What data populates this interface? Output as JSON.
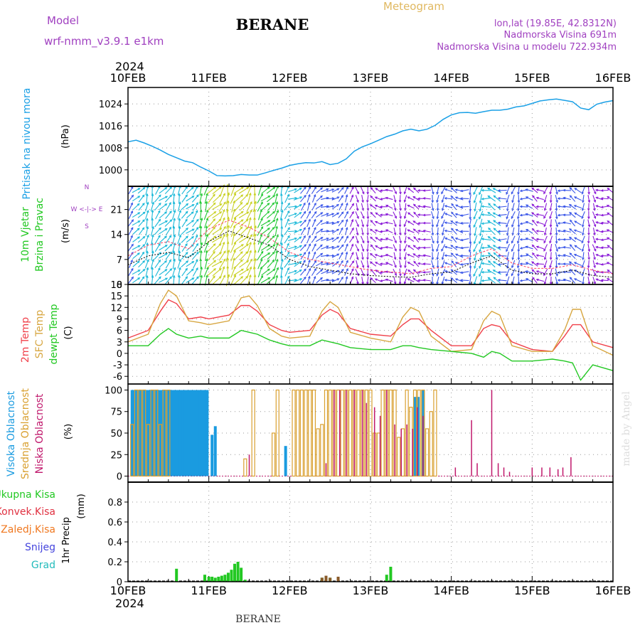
{
  "header": {
    "model_label": "Model",
    "model_name": "wrf-nmm_v3.9.1  e1km",
    "station": "BERANE",
    "product": "Meteogram",
    "lonlat": "lon,lat (19.85E, 42.8312N)",
    "elevation": "Nadmorska Visina 691m",
    "model_elevation": "Nadmorska Visina u modelu 722.934m",
    "year": "2024",
    "footer_station": "BERANE",
    "credit": "made by Angel"
  },
  "colors": {
    "pressure": "#1aa0e6",
    "temp2m": "#f0404a",
    "sfc_temp": "#d7a640",
    "dewpt": "#22c822",
    "high_cloud": "#1a9be0",
    "mid_cloud": "#d9a030",
    "low_cloud": "#c0186c",
    "precip_total": "#22c822",
    "precip_conv": "#e03040",
    "precip_frozen": "#f07820",
    "snow": "#4444dd",
    "hail": "#22bbbb",
    "model_text": "#a040c0"
  },
  "chart_data": [
    {
      "id": "pressure",
      "type": "line",
      "title": "Pritisak na nivou mora",
      "ylabel": "(hPa)",
      "xlabel": "",
      "x_ticks": [
        "10FEB",
        "11FEB",
        "12FEB",
        "13FEB",
        "14FEB",
        "15FEB",
        "16FEB"
      ],
      "ylim": [
        994,
        1030
      ],
      "y_ticks": [
        1000,
        1008,
        1016,
        1024
      ],
      "grid": true,
      "series": [
        {
          "x": [
            0,
            0.1,
            0.2,
            0.3,
            0.4,
            0.5,
            0.6,
            0.7,
            0.8,
            0.9,
            1.0,
            1.1,
            1.2,
            1.3,
            1.4,
            1.5,
            1.6,
            1.7,
            1.8,
            1.9,
            2.0,
            2.1,
            2.2,
            2.3,
            2.4,
            2.5,
            2.6,
            2.7,
            2.8,
            2.9,
            3.0,
            3.1,
            3.2,
            3.3,
            3.4,
            3.5,
            3.6,
            3.7,
            3.8,
            3.9,
            4.0,
            4.1,
            4.2,
            4.3,
            4.4,
            4.5,
            4.6,
            4.7,
            4.8,
            4.9,
            5.0,
            5.1,
            5.2,
            5.3,
            5.4,
            5.5,
            5.6,
            5.7,
            5.8,
            5.9,
            6.0
          ],
          "values": [
            1010.2,
            1010.8,
            1009.8,
            1008.6,
            1007.2,
            1005.6,
            1004.4,
            1003.2,
            1002.6,
            1001.0,
            999.6,
            997.9,
            997.8,
            997.9,
            998.3,
            998.1,
            998.1,
            998.9,
            999.8,
            1000.6,
            1001.6,
            1002.2,
            1002.6,
            1002.5,
            1003.0,
            1001.9,
            1002.4,
            1004.0,
            1006.8,
            1008.4,
            1009.5,
            1010.8,
            1012.1,
            1013.0,
            1014.2,
            1014.8,
            1014.2,
            1014.8,
            1016.2,
            1018.4,
            1020.0,
            1020.8,
            1020.9,
            1020.6,
            1021.2,
            1021.7,
            1021.7,
            1022.1,
            1022.9,
            1023.3,
            1024.2,
            1025.1,
            1025.5,
            1025.8,
            1025.3,
            1024.8,
            1022.5,
            1021.9,
            1023.9,
            1024.7,
            1025.2
          ]
        }
      ]
    },
    {
      "id": "wind",
      "type": "line",
      "title": "10m Vjetar",
      "subtitle": "Brzina i Pravac",
      "ylabel": "(m/s)",
      "compass": "W <-|-> E",
      "compass_n": "N",
      "compass_s": "S",
      "x_ticks": [
        "10FEB",
        "11FEB",
        "12FEB",
        "13FEB",
        "14FEB",
        "15FEB",
        "16FEB"
      ],
      "ylim": [
        0,
        27.5
      ],
      "y_ticks": [
        0,
        7,
        14,
        21
      ],
      "grid": true,
      "series": [
        {
          "name": "speed",
          "x": [
            0,
            0.25,
            0.5,
            0.75,
            1.0,
            1.25,
            1.5,
            1.75,
            2.0,
            2.25,
            2.5,
            2.75,
            3.0,
            3.25,
            3.5,
            3.75,
            4.0,
            4.25,
            4.5,
            4.75,
            5.0,
            5.25,
            5.5,
            5.75,
            6.0
          ],
          "values": [
            5.5,
            8.0,
            9.0,
            7.5,
            12.0,
            15.0,
            13.0,
            11.0,
            7.0,
            5.0,
            4.0,
            3.0,
            2.5,
            2.2,
            2.0,
            3.0,
            3.5,
            6.0,
            8.0,
            4.0,
            3.0,
            3.0,
            4.0,
            2.5,
            2.0
          ]
        },
        {
          "name": "gust",
          "x": [
            0,
            0.25,
            0.5,
            0.75,
            1.0,
            1.25,
            1.5,
            1.75,
            2.0,
            2.25,
            2.5,
            2.75,
            3.0,
            3.25,
            3.5,
            3.75,
            4.0,
            4.25,
            4.5,
            4.75,
            5.0,
            5.25,
            5.5,
            5.75,
            6.0
          ],
          "values": [
            8.0,
            11.0,
            12.0,
            10.0,
            15.5,
            18.0,
            16.0,
            13.0,
            9.0,
            7.0,
            6.0,
            5.0,
            4.0,
            3.5,
            3.0,
            4.5,
            5.0,
            8.0,
            10.0,
            6.0,
            4.5,
            4.5,
            5.5,
            4.0,
            3.0
          ]
        }
      ]
    },
    {
      "id": "temperature",
      "type": "line",
      "title": "2m Temp",
      "title2": "SFC Temp",
      "title3": "dewpt Temp",
      "ylabel": "(C)",
      "x_ticks": [
        "10FEB",
        "11FEB",
        "12FEB",
        "13FEB",
        "14FEB",
        "15FEB",
        "16FEB"
      ],
      "ylim": [
        -8,
        18
      ],
      "y_ticks": [
        -6,
        -3,
        0,
        3,
        6,
        9,
        12,
        15,
        18
      ],
      "grid": true,
      "series": [
        {
          "name": "2m Temp",
          "x": [
            0,
            0.25,
            0.4,
            0.5,
            0.6,
            0.75,
            0.9,
            1.0,
            1.25,
            1.4,
            1.5,
            1.6,
            1.75,
            1.9,
            2.0,
            2.25,
            2.4,
            2.5,
            2.6,
            2.75,
            3.0,
            3.25,
            3.4,
            3.5,
            3.6,
            3.75,
            4.0,
            4.25,
            4.4,
            4.5,
            4.6,
            4.75,
            5.0,
            5.25,
            5.4,
            5.5,
            5.6,
            5.75,
            6.0
          ],
          "values": [
            4.0,
            6.0,
            11.0,
            14.0,
            13.0,
            9.0,
            9.5,
            9.0,
            10.0,
            12.5,
            12.5,
            11.0,
            7.5,
            6.0,
            5.5,
            6.0,
            10.0,
            11.5,
            10.5,
            6.5,
            5.0,
            4.5,
            7.5,
            9.0,
            9.0,
            6.0,
            2.0,
            2.0,
            6.5,
            7.5,
            7.0,
            3.0,
            1.0,
            0.5,
            4.5,
            7.5,
            7.5,
            3.0,
            1.5
          ]
        },
        {
          "name": "SFC Temp",
          "x": [
            0,
            0.25,
            0.4,
            0.5,
            0.6,
            0.75,
            0.9,
            1.0,
            1.25,
            1.4,
            1.5,
            1.6,
            1.75,
            1.9,
            2.0,
            2.25,
            2.4,
            2.5,
            2.6,
            2.75,
            3.0,
            3.25,
            3.4,
            3.5,
            3.6,
            3.75,
            4.0,
            4.25,
            4.4,
            4.5,
            4.6,
            4.75,
            5.0,
            5.25,
            5.4,
            5.5,
            5.6,
            5.75,
            6.0
          ],
          "values": [
            3.0,
            5.0,
            13.0,
            16.5,
            15.0,
            8.5,
            8.0,
            7.5,
            8.5,
            14.5,
            15.0,
            12.5,
            6.5,
            4.5,
            4.0,
            4.5,
            11.0,
            13.5,
            12.0,
            5.5,
            4.0,
            3.0,
            9.5,
            12.0,
            11.0,
            4.5,
            0.5,
            1.0,
            8.5,
            11.0,
            10.0,
            2.0,
            0.5,
            0.5,
            6.0,
            11.5,
            11.5,
            2.0,
            -0.5
          ]
        },
        {
          "name": "dewpt Temp",
          "x": [
            0,
            0.25,
            0.4,
            0.5,
            0.6,
            0.75,
            0.9,
            1.0,
            1.25,
            1.4,
            1.5,
            1.6,
            1.75,
            1.9,
            2.0,
            2.25,
            2.4,
            2.5,
            2.6,
            2.75,
            3.0,
            3.25,
            3.4,
            3.5,
            3.6,
            3.75,
            4.0,
            4.25,
            4.4,
            4.5,
            4.6,
            4.75,
            5.0,
            5.25,
            5.4,
            5.5,
            5.6,
            5.75,
            6.0
          ],
          "values": [
            2.0,
            2.0,
            5.0,
            6.5,
            5.0,
            4.0,
            4.5,
            4.0,
            4.0,
            6.0,
            5.5,
            5.0,
            3.5,
            2.5,
            2.0,
            2.0,
            3.5,
            3.0,
            2.5,
            1.5,
            1.0,
            1.0,
            2.0,
            2.0,
            1.5,
            1.0,
            0.5,
            0.0,
            -1.0,
            0.5,
            0.0,
            -2.0,
            -2.0,
            -1.5,
            -2.0,
            -2.5,
            -7.0,
            -3.0,
            -4.5
          ]
        }
      ]
    },
    {
      "id": "cloud",
      "type": "bar",
      "title": "Visoka Oblacnost",
      "title2": "Srednja Oblacnost",
      "title3": "Niska Oblacnost",
      "ylabel": "(%)",
      "x_ticks": [
        "10FEB",
        "11FEB",
        "12FEB",
        "13FEB",
        "14FEB",
        "15FEB",
        "16FEB"
      ],
      "ylim": [
        -7,
        107
      ],
      "y_ticks": [
        0,
        25,
        50,
        75,
        100
      ],
      "grid": true,
      "series": [
        {
          "name": "Visoka Oblacnost",
          "x": [
            0.05,
            0.08,
            0.11,
            0.14,
            0.17,
            0.2,
            0.23,
            0.26,
            0.29,
            0.32,
            0.35,
            0.38,
            0.41,
            0.44,
            0.47,
            0.5,
            0.53,
            0.56,
            0.59,
            0.62,
            0.65,
            0.68,
            0.71,
            0.74,
            0.77,
            0.8,
            0.83,
            0.86,
            0.89,
            0.92,
            0.95,
            0.98,
            1.04,
            1.08,
            1.95,
            3.55,
            3.59,
            3.65
          ],
          "values": [
            100,
            100,
            100,
            100,
            100,
            100,
            100,
            100,
            100,
            100,
            100,
            100,
            100,
            100,
            100,
            100,
            100,
            100,
            100,
            100,
            100,
            100,
            100,
            100,
            100,
            100,
            100,
            100,
            100,
            100,
            100,
            100,
            48,
            58,
            35,
            92,
            92,
            100
          ]
        },
        {
          "name": "Srednja Oblacnost",
          "x": [
            0.05,
            0.1,
            0.15,
            0.2,
            0.25,
            0.3,
            0.35,
            0.4,
            0.45,
            0.5,
            1.45,
            1.55,
            1.8,
            1.85,
            2.05,
            2.1,
            2.15,
            2.2,
            2.25,
            2.3,
            2.35,
            2.4,
            2.45,
            2.5,
            2.55,
            2.6,
            2.65,
            2.7,
            2.75,
            2.8,
            2.85,
            2.9,
            2.95,
            3.0,
            3.05,
            3.1,
            3.15,
            3.2,
            3.25,
            3.3,
            3.35,
            3.4,
            3.45,
            3.5,
            3.55,
            3.6,
            3.65,
            3.7,
            3.75,
            3.8
          ],
          "values": [
            60,
            100,
            100,
            100,
            60,
            100,
            100,
            60,
            100,
            100,
            20,
            100,
            50,
            100,
            100,
            100,
            100,
            100,
            100,
            100,
            55,
            60,
            100,
            100,
            100,
            100,
            100,
            100,
            100,
            100,
            100,
            100,
            100,
            100,
            50,
            50,
            100,
            100,
            100,
            100,
            45,
            55,
            100,
            80,
            100,
            100,
            100,
            55,
            75,
            100
          ]
        },
        {
          "name": "Niska Oblacnost",
          "x": [
            1.5,
            2.45,
            2.55,
            2.62,
            2.7,
            2.8,
            2.9,
            2.95,
            3.05,
            3.12,
            3.2,
            3.3,
            3.38,
            3.45,
            3.52,
            3.58,
            3.65,
            4.05,
            4.25,
            4.32,
            4.5,
            4.58,
            4.65,
            4.72,
            5.0,
            5.12,
            5.22,
            5.32,
            5.38,
            5.48
          ],
          "values": [
            25,
            15,
            100,
            100,
            100,
            100,
            100,
            85,
            80,
            70,
            100,
            60,
            55,
            60,
            55,
            80,
            70,
            10,
            65,
            15,
            100,
            15,
            10,
            5,
            10,
            10,
            10,
            8,
            10,
            22
          ]
        }
      ]
    },
    {
      "id": "precip",
      "type": "bar",
      "title": "1hr Precip",
      "ylabel": "(mm)",
      "legend": [
        "Ukupna Kisa",
        "Konvek.Kisa",
        "Zaledj.Kisa",
        "Snijeg",
        "Grad"
      ],
      "x_ticks": [
        "10FEB",
        "11FEB",
        "12FEB",
        "13FEB",
        "14FEB",
        "15FEB",
        "16FEB"
      ],
      "ylim": [
        0,
        1.0
      ],
      "y_ticks": [
        0,
        0.2,
        0.4,
        0.6,
        0.8
      ],
      "grid": true,
      "series": [
        {
          "name": "Ukupna Kisa",
          "x": [
            0.6,
            0.95,
            1.0,
            1.04,
            1.08,
            1.12,
            1.16,
            1.2,
            1.24,
            1.28,
            1.32,
            1.36,
            1.4,
            1.45,
            2.4,
            2.45,
            2.5,
            3.2,
            3.25
          ],
          "values": [
            0.13,
            0.07,
            0.05,
            0.05,
            0.04,
            0.05,
            0.06,
            0.07,
            0.09,
            0.12,
            0.18,
            0.2,
            0.14,
            0.02,
            0.04,
            0.05,
            0.04,
            0.07,
            0.15
          ]
        },
        {
          "name": "Zaledj.Kisa",
          "x": [
            2.4,
            2.45,
            2.5,
            2.6
          ],
          "values": [
            0.04,
            0.06,
            0.04,
            0.05
          ]
        }
      ]
    }
  ]
}
